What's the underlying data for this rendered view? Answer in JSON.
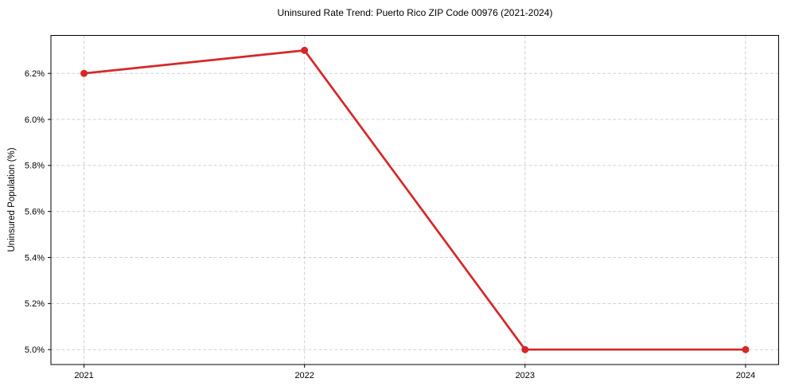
{
  "chart_data": {
    "type": "line",
    "title": "Uninsured Rate Trend: Puerto Rico ZIP Code 00976 (2021-2024)",
    "xlabel": "",
    "ylabel": "Uninsured Population (%)",
    "x": [
      2021,
      2022,
      2023,
      2024
    ],
    "categories": [
      "2021",
      "2022",
      "2023",
      "2024"
    ],
    "values": [
      6.2,
      6.3,
      5.0,
      5.0
    ],
    "yticks": [
      5.0,
      5.2,
      5.4,
      5.6,
      5.8,
      6.0,
      6.2
    ],
    "ytick_labels": [
      "5.0%",
      "5.2%",
      "5.4%",
      "5.6%",
      "5.8%",
      "6.0%",
      "6.2%"
    ],
    "xlim": [
      2020.85,
      2024.15
    ],
    "ylim": [
      4.935,
      6.365
    ],
    "grid": true,
    "grid_style": "dashed",
    "grid_color": "#cccccc",
    "line_color": "#d62728",
    "marker": "circle",
    "legend": "none"
  }
}
